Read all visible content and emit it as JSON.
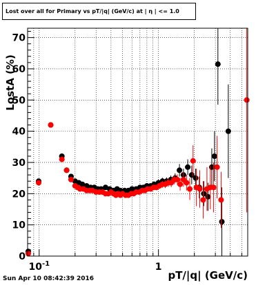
{
  "title": "Lost over all for Primary vs pT/|q| (GeV/c) at | η | <= 1.0",
  "timestamp": "Sun Apr 10 08:42:39 2016",
  "colors": {
    "series_black": "#000000",
    "series_red": "#ff0000",
    "grid": "#000000"
  },
  "chart_data": {
    "type": "scatter",
    "xlabel": "pT/|q| (GeV/c)",
    "ylabel": "LostA (%)",
    "xscale": "log",
    "xlim": [
      0.08,
      5.6
    ],
    "ylim": [
      0,
      73
    ],
    "grid": true,
    "x_tick_labels": [
      {
        "x": 0.1,
        "base": "10",
        "exp": "-1"
      },
      {
        "x": 1,
        "base": "1",
        "exp": ""
      }
    ],
    "y_ticks": [
      0,
      10,
      20,
      30,
      40,
      50,
      60,
      70
    ],
    "series": [
      {
        "color": "#000000",
        "points": [
          [
            0.081,
            1.5
          ],
          [
            0.099,
            24
          ],
          [
            0.125,
            42
          ],
          [
            0.155,
            32
          ],
          [
            0.17,
            27.5
          ],
          [
            0.185,
            25.5
          ],
          [
            0.2,
            24
          ],
          [
            0.215,
            23.5
          ],
          [
            0.23,
            23
          ],
          [
            0.25,
            22.5
          ],
          [
            0.27,
            22
          ],
          [
            0.29,
            22
          ],
          [
            0.31,
            21.5
          ],
          [
            0.33,
            21.5
          ],
          [
            0.36,
            22
          ],
          [
            0.39,
            21.5
          ],
          [
            0.42,
            21
          ],
          [
            0.45,
            21.5
          ],
          [
            0.48,
            21
          ],
          [
            0.52,
            21
          ],
          [
            0.56,
            21
          ],
          [
            0.6,
            21.5
          ],
          [
            0.65,
            21.5
          ],
          [
            0.7,
            22
          ],
          [
            0.75,
            22
          ],
          [
            0.8,
            22.5
          ],
          [
            0.86,
            22.5
          ],
          [
            0.92,
            23
          ],
          [
            1.0,
            23.5
          ],
          [
            1.08,
            24
          ],
          [
            1.17,
            24
          ],
          [
            1.27,
            24.5
          ],
          [
            1.38,
            25
          ],
          [
            1.5,
            27.5
          ],
          [
            1.62,
            26
          ],
          [
            1.76,
            28.5
          ],
          [
            1.9,
            26
          ],
          [
            2.05,
            25
          ],
          [
            2.2,
            22
          ],
          [
            2.4,
            20
          ],
          [
            2.6,
            19
          ],
          [
            2.8,
            28.5
          ],
          [
            2.95,
            32
          ],
          [
            3.15,
            61.5
          ],
          [
            3.4,
            11
          ],
          [
            3.85,
            40
          ]
        ],
        "errors": [
          [
            0.5,
            0.5
          ],
          [
            0.8,
            0.8
          ],
          [
            0.8,
            0.8
          ],
          [
            0.8,
            0.8
          ],
          [
            0.6,
            0.6
          ],
          [
            0.6,
            0.6
          ],
          [
            0.5,
            0.5
          ],
          [
            0.5,
            0.5
          ],
          [
            0.5,
            0.5
          ],
          [
            0.5,
            0.5
          ],
          [
            0.5,
            0.5
          ],
          [
            0.5,
            0.5
          ],
          [
            0.5,
            0.5
          ],
          [
            0.5,
            0.5
          ],
          [
            0.5,
            0.5
          ],
          [
            0.5,
            0.5
          ],
          [
            0.5,
            0.5
          ],
          [
            0.5,
            0.5
          ],
          [
            0.5,
            0.5
          ],
          [
            0.5,
            0.5
          ],
          [
            0.5,
            0.5
          ],
          [
            0.5,
            0.5
          ],
          [
            0.6,
            0.6
          ],
          [
            0.6,
            0.6
          ],
          [
            0.6,
            0.6
          ],
          [
            0.7,
            0.7
          ],
          [
            0.8,
            0.8
          ],
          [
            0.9,
            0.9
          ],
          [
            1.0,
            1.0
          ],
          [
            1.1,
            1.1
          ],
          [
            1.2,
            1.2
          ],
          [
            1.3,
            1.3
          ],
          [
            1.5,
            1.5
          ],
          [
            2.0,
            2.0
          ],
          [
            2.0,
            2.0
          ],
          [
            2.5,
            2.5
          ],
          [
            3.0,
            3.0
          ],
          [
            3.0,
            3.0
          ],
          [
            3.5,
            3.5
          ],
          [
            4.0,
            4.0
          ],
          [
            4.5,
            4.5
          ],
          [
            6,
            6
          ],
          [
            8,
            8
          ],
          [
            13,
            13
          ],
          [
            11,
            11
          ],
          [
            15,
            15
          ]
        ]
      },
      {
        "color": "#ff0000",
        "points": [
          [
            0.081,
            0.8
          ],
          [
            0.099,
            23.5
          ],
          [
            0.125,
            42
          ],
          [
            0.155,
            31
          ],
          [
            0.17,
            27.5
          ],
          [
            0.185,
            24.5
          ],
          [
            0.2,
            22.5
          ],
          [
            0.21,
            22
          ],
          [
            0.22,
            21.5
          ],
          [
            0.235,
            21.5
          ],
          [
            0.25,
            21
          ],
          [
            0.265,
            21
          ],
          [
            0.28,
            21
          ],
          [
            0.3,
            20.5
          ],
          [
            0.32,
            20.5
          ],
          [
            0.34,
            20.5
          ],
          [
            0.36,
            20
          ],
          [
            0.38,
            20
          ],
          [
            0.4,
            20.5
          ],
          [
            0.42,
            20
          ],
          [
            0.44,
            19.5
          ],
          [
            0.46,
            20
          ],
          [
            0.48,
            19.5
          ],
          [
            0.5,
            20
          ],
          [
            0.53,
            19.5
          ],
          [
            0.56,
            19.5
          ],
          [
            0.59,
            20
          ],
          [
            0.62,
            20
          ],
          [
            0.65,
            20.5
          ],
          [
            0.69,
            20.5
          ],
          [
            0.73,
            21
          ],
          [
            0.77,
            21
          ],
          [
            0.81,
            21.5
          ],
          [
            0.86,
            21.5
          ],
          [
            0.91,
            22
          ],
          [
            0.96,
            22
          ],
          [
            1.02,
            22.5
          ],
          [
            1.08,
            23
          ],
          [
            1.14,
            23
          ],
          [
            1.21,
            23.5
          ],
          [
            1.28,
            23.5
          ],
          [
            1.36,
            24.5
          ],
          [
            1.44,
            24.5
          ],
          [
            1.52,
            23
          ],
          [
            1.62,
            24.5
          ],
          [
            1.72,
            23.5
          ],
          [
            1.83,
            21.5
          ],
          [
            1.95,
            30.5
          ],
          [
            2.08,
            22
          ],
          [
            2.22,
            21.5
          ],
          [
            2.37,
            18
          ],
          [
            2.55,
            21.5
          ],
          [
            2.72,
            22
          ],
          [
            2.9,
            22
          ],
          [
            3.1,
            28.5
          ],
          [
            3.35,
            18
          ],
          [
            5.5,
            50
          ]
        ],
        "errors": [
          [
            0.8,
            0.8
          ],
          [
            0.8,
            0.8
          ],
          [
            0.8,
            0.8
          ],
          [
            0.8,
            0.8
          ],
          [
            0.6,
            0.6
          ],
          [
            0.6,
            0.6
          ],
          [
            0.5,
            0.5
          ],
          [
            0.5,
            0.5
          ],
          [
            0.5,
            0.5
          ],
          [
            0.5,
            0.5
          ],
          [
            0.5,
            0.5
          ],
          [
            0.5,
            0.5
          ],
          [
            0.5,
            0.5
          ],
          [
            0.5,
            0.5
          ],
          [
            0.5,
            0.5
          ],
          [
            0.5,
            0.5
          ],
          [
            0.5,
            0.5
          ],
          [
            0.5,
            0.5
          ],
          [
            0.5,
            0.5
          ],
          [
            0.5,
            0.5
          ],
          [
            0.5,
            0.5
          ],
          [
            0.5,
            0.5
          ],
          [
            0.5,
            0.5
          ],
          [
            0.5,
            0.5
          ],
          [
            0.5,
            0.5
          ],
          [
            0.5,
            0.5
          ],
          [
            0.5,
            0.5
          ],
          [
            0.5,
            0.5
          ],
          [
            0.5,
            0.5
          ],
          [
            0.6,
            0.6
          ],
          [
            0.6,
            0.6
          ],
          [
            0.6,
            0.6
          ],
          [
            0.7,
            0.7
          ],
          [
            0.7,
            0.7
          ],
          [
            0.8,
            0.8
          ],
          [
            0.9,
            0.9
          ],
          [
            1.0,
            1.0
          ],
          [
            1.1,
            1.1
          ],
          [
            1.2,
            1.2
          ],
          [
            1.3,
            1.3
          ],
          [
            1.4,
            1.4
          ],
          [
            1.5,
            1.5
          ],
          [
            1.7,
            1.7
          ],
          [
            2.0,
            2.0
          ],
          [
            2.3,
            2.3
          ],
          [
            2.5,
            2.5
          ],
          [
            3.5,
            3.5
          ],
          [
            5,
            5
          ],
          [
            6,
            6
          ],
          [
            6,
            6
          ],
          [
            6,
            6
          ],
          [
            7,
            7
          ],
          [
            7,
            7
          ],
          [
            8,
            8
          ],
          [
            10,
            10
          ],
          [
            9,
            9
          ],
          [
            36,
            36
          ]
        ]
      }
    ]
  }
}
